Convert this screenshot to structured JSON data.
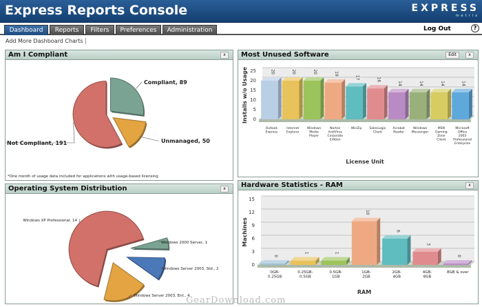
{
  "header": {
    "title": "Express Reports Console",
    "logo_text": "EXPRESS",
    "logo_sub": "metrix"
  },
  "tabs": [
    {
      "label": "Dashboard",
      "active": true
    },
    {
      "label": "Reports"
    },
    {
      "label": "Filters"
    },
    {
      "label": "Preferences"
    },
    {
      "label": "Administration"
    }
  ],
  "logout": "Log Out",
  "help": "?",
  "add_charts": "Add More Dashboard Charts",
  "panels": {
    "compliant": {
      "title": "Am I Compliant",
      "close": "x",
      "footnote": "*One month of usage data included for applications with usage-based licensing"
    },
    "os": {
      "title": "Operating System Distribution",
      "close": "x"
    },
    "unused": {
      "title": "Most Unused Software",
      "edit": "Edit",
      "close": "x"
    },
    "ram": {
      "title": "Hardware Statistics - RAM",
      "close": "x"
    }
  },
  "watermark": "GearDownload.com",
  "chart_data": [
    {
      "type": "pie",
      "title": "Am I Compliant",
      "slices": [
        {
          "label": "Compliant, 89",
          "value": 89,
          "color": "#7aa393"
        },
        {
          "label": "Unmanaged, 50",
          "value": 50,
          "color": "#e3a441"
        },
        {
          "label": "Not Compliant, 191",
          "value": 191,
          "color": "#d1716a"
        }
      ]
    },
    {
      "type": "pie",
      "title": "Operating System Distribution",
      "slices": [
        {
          "label": "Windows 2000 Server, 1",
          "value": 1,
          "color": "#7aa393"
        },
        {
          "label": "Windows Server 2003, Std., 2",
          "value": 2,
          "color": "#4b78b8"
        },
        {
          "label": "Windows Server 2003, Ent., 4",
          "value": 4,
          "color": "#e3a441"
        },
        {
          "label": "Windows XP Professional, 14",
          "value": 14,
          "color": "#d1716a"
        }
      ]
    },
    {
      "type": "bar",
      "title": "Most Unused Software",
      "xlabel": "License Unit",
      "ylabel": "Installs w/o Usage",
      "ylim": [
        0,
        25
      ],
      "yticks": [
        0,
        5,
        10,
        15,
        20,
        25
      ],
      "categories": [
        "Outlook Express",
        "Internet Explorer",
        "Windows Media Player",
        "Norton AntiVirus Corporate Edition",
        "WinZip",
        "SalesLogix Client",
        "Acrobat Reader",
        "Windows Messenger",
        "MSN Gaming Zone Client",
        "Microsoft Office 2003 Professional Enterprise"
      ],
      "values": [
        20,
        20,
        20,
        19,
        17,
        16,
        14,
        14,
        14,
        14
      ],
      "colors": [
        "#b9cfe6",
        "#e8c25a",
        "#9cc45c",
        "#efa982",
        "#5fbcbf",
        "#e08c8e",
        "#b98bc4",
        "#9ab07a",
        "#d6cc62",
        "#5fa8dc"
      ]
    },
    {
      "type": "bar",
      "title": "Hardware Statistics - RAM",
      "xlabel": "RAM",
      "ylabel": "Machines",
      "ylim": [
        0,
        15
      ],
      "yticks": [
        0,
        3,
        6,
        9,
        12,
        15
      ],
      "categories": [
        "0GB-0.25GB",
        "0.25GB-0.5GB",
        "0.5GB-1GB",
        "1GB-2GB",
        "2GB-4GB",
        "4GB-8GB",
        "8GB & over"
      ],
      "values": [
        0,
        1,
        1,
        10,
        6,
        3,
        0
      ],
      "colors": [
        "#9cc0d6",
        "#e8c25a",
        "#9cc45c",
        "#efa982",
        "#5fbcbf",
        "#e08c8e",
        "#b98bc4"
      ]
    }
  ]
}
